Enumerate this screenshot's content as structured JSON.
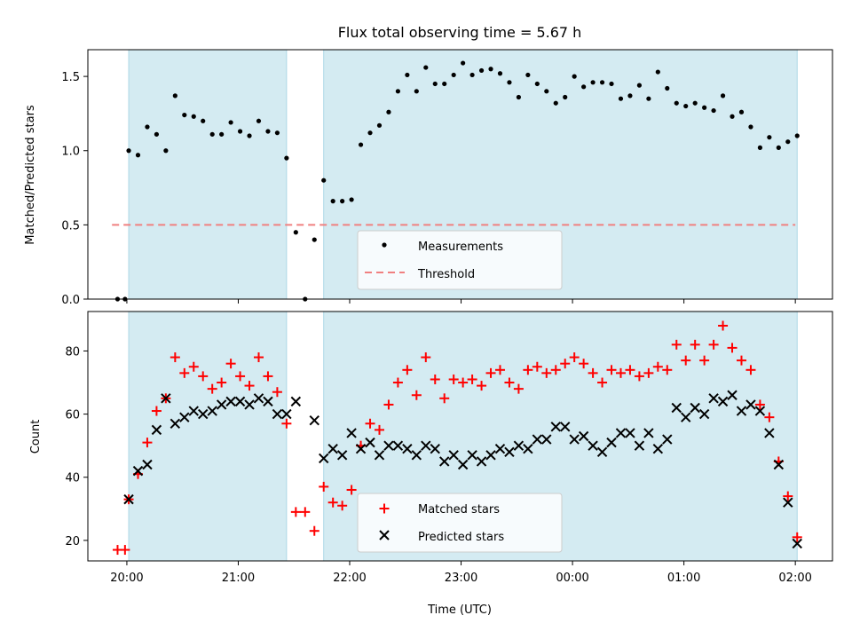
{
  "chart_data": {
    "type": "scatter",
    "title": "Flux total observing time = 5.67 h",
    "xlabel": "Time (UTC)",
    "x_ticks": [
      "20:00",
      "21:00",
      "22:00",
      "23:00",
      "00:00",
      "01:00",
      "02:00"
    ],
    "x_range": [
      "19:39",
      "02:20"
    ],
    "shaded_intervals": [
      [
        "20:01",
        "21:26"
      ],
      [
        "21:46",
        "02:01"
      ]
    ],
    "shade_color": "#add8e6",
    "top": {
      "ylabel": "Matched/Predicted stars",
      "ylim": [
        0,
        1.68
      ],
      "y_ticks": [
        0.0,
        0.5,
        1.0,
        1.5
      ],
      "y_tick_labels": [
        "0.0",
        "0.5",
        "1.0",
        "1.5"
      ],
      "legend_position": "bottom-center",
      "threshold": {
        "name": "Threshold",
        "value": 0.5,
        "x_range": [
          "19:52",
          "02:00"
        ],
        "color": "#f08080"
      },
      "series": [
        {
          "name": "Measurements",
          "color": "#000000",
          "points": [
            [
              "19:55",
              0.0
            ],
            [
              "19:59",
              0.0
            ],
            [
              "20:01",
              1.0
            ],
            [
              "20:06",
              0.97
            ],
            [
              "20:11",
              1.16
            ],
            [
              "20:16",
              1.11
            ],
            [
              "20:21",
              1.0
            ],
            [
              "20:26",
              1.37
            ],
            [
              "20:31",
              1.24
            ],
            [
              "20:36",
              1.23
            ],
            [
              "20:41",
              1.2
            ],
            [
              "20:46",
              1.11
            ],
            [
              "20:51",
              1.11
            ],
            [
              "20:56",
              1.19
            ],
            [
              "21:01",
              1.13
            ],
            [
              "21:06",
              1.1
            ],
            [
              "21:11",
              1.2
            ],
            [
              "21:16",
              1.13
            ],
            [
              "21:21",
              1.12
            ],
            [
              "21:26",
              0.95
            ],
            [
              "21:31",
              0.45
            ],
            [
              "21:36",
              0.0
            ],
            [
              "21:41",
              0.4
            ],
            [
              "21:46",
              0.8
            ],
            [
              "21:51",
              0.66
            ],
            [
              "21:56",
              0.66
            ],
            [
              "22:01",
              0.67
            ],
            [
              "22:06",
              1.04
            ],
            [
              "22:11",
              1.12
            ],
            [
              "22:16",
              1.17
            ],
            [
              "22:21",
              1.26
            ],
            [
              "22:26",
              1.4
            ],
            [
              "22:31",
              1.51
            ],
            [
              "22:36",
              1.4
            ],
            [
              "22:41",
              1.56
            ],
            [
              "22:46",
              1.45
            ],
            [
              "22:51",
              1.45
            ],
            [
              "22:56",
              1.51
            ],
            [
              "23:01",
              1.59
            ],
            [
              "23:06",
              1.51
            ],
            [
              "23:11",
              1.54
            ],
            [
              "23:16",
              1.55
            ],
            [
              "23:21",
              1.52
            ],
            [
              "23:26",
              1.46
            ],
            [
              "23:31",
              1.36
            ],
            [
              "23:36",
              1.51
            ],
            [
              "23:41",
              1.45
            ],
            [
              "23:46",
              1.4
            ],
            [
              "23:51",
              1.32
            ],
            [
              "23:56",
              1.36
            ],
            [
              "00:01",
              1.5
            ],
            [
              "00:06",
              1.43
            ],
            [
              "00:11",
              1.46
            ],
            [
              "00:16",
              1.46
            ],
            [
              "00:21",
              1.45
            ],
            [
              "00:26",
              1.35
            ],
            [
              "00:31",
              1.37
            ],
            [
              "00:36",
              1.44
            ],
            [
              "00:41",
              1.35
            ],
            [
              "00:46",
              1.53
            ],
            [
              "00:51",
              1.42
            ],
            [
              "00:56",
              1.32
            ],
            [
              "01:01",
              1.3
            ],
            [
              "01:06",
              1.32
            ],
            [
              "01:11",
              1.29
            ],
            [
              "01:16",
              1.27
            ],
            [
              "01:21",
              1.37
            ],
            [
              "01:26",
              1.23
            ],
            [
              "01:31",
              1.26
            ],
            [
              "01:36",
              1.16
            ],
            [
              "01:41",
              1.02
            ],
            [
              "01:46",
              1.09
            ],
            [
              "01:51",
              1.02
            ],
            [
              "01:56",
              1.06
            ],
            [
              "02:01",
              1.1
            ]
          ]
        }
      ]
    },
    "bottom": {
      "ylabel": "Count",
      "ylim": [
        13.5,
        92.5
      ],
      "y_ticks": [
        20,
        40,
        60,
        80
      ],
      "legend_position": "bottom-center",
      "series": [
        {
          "name": "Matched stars",
          "color": "#ff0000",
          "marker": "+",
          "points": [
            [
              "19:55",
              17
            ],
            [
              "19:59",
              17
            ],
            [
              "20:01",
              33
            ],
            [
              "20:06",
              41
            ],
            [
              "20:11",
              51
            ],
            [
              "20:16",
              61
            ],
            [
              "20:21",
              65
            ],
            [
              "20:26",
              78
            ],
            [
              "20:31",
              73
            ],
            [
              "20:36",
              75
            ],
            [
              "20:41",
              72
            ],
            [
              "20:46",
              68
            ],
            [
              "20:51",
              70
            ],
            [
              "20:56",
              76
            ],
            [
              "21:01",
              72
            ],
            [
              "21:06",
              69
            ],
            [
              "21:11",
              78
            ],
            [
              "21:16",
              72
            ],
            [
              "21:21",
              67
            ],
            [
              "21:26",
              57
            ],
            [
              "21:31",
              29
            ],
            [
              "21:36",
              29
            ],
            [
              "21:41",
              23
            ],
            [
              "21:46",
              37
            ],
            [
              "21:51",
              32
            ],
            [
              "21:56",
              31
            ],
            [
              "22:01",
              36
            ],
            [
              "22:06",
              50
            ],
            [
              "22:11",
              57
            ],
            [
              "22:16",
              55
            ],
            [
              "22:21",
              63
            ],
            [
              "22:26",
              70
            ],
            [
              "22:31",
              74
            ],
            [
              "22:36",
              66
            ],
            [
              "22:41",
              78
            ],
            [
              "22:46",
              71
            ],
            [
              "22:51",
              65
            ],
            [
              "22:56",
              71
            ],
            [
              "23:01",
              70
            ],
            [
              "23:06",
              71
            ],
            [
              "23:11",
              69
            ],
            [
              "23:16",
              73
            ],
            [
              "23:21",
              74
            ],
            [
              "23:26",
              70
            ],
            [
              "23:31",
              68
            ],
            [
              "23:36",
              74
            ],
            [
              "23:41",
              75
            ],
            [
              "23:46",
              73
            ],
            [
              "23:51",
              74
            ],
            [
              "23:56",
              76
            ],
            [
              "00:01",
              78
            ],
            [
              "00:06",
              76
            ],
            [
              "00:11",
              73
            ],
            [
              "00:16",
              70
            ],
            [
              "00:21",
              74
            ],
            [
              "00:26",
              73
            ],
            [
              "00:31",
              74
            ],
            [
              "00:36",
              72
            ],
            [
              "00:41",
              73
            ],
            [
              "00:46",
              75
            ],
            [
              "00:51",
              74
            ],
            [
              "00:56",
              82
            ],
            [
              "01:01",
              77
            ],
            [
              "01:06",
              82
            ],
            [
              "01:11",
              77
            ],
            [
              "01:16",
              82
            ],
            [
              "01:21",
              88
            ],
            [
              "01:26",
              81
            ],
            [
              "01:31",
              77
            ],
            [
              "01:36",
              74
            ],
            [
              "01:41",
              63
            ],
            [
              "01:46",
              59
            ],
            [
              "01:51",
              45
            ],
            [
              "01:56",
              34
            ],
            [
              "02:01",
              21
            ]
          ]
        },
        {
          "name": "Predicted stars",
          "color": "#000000",
          "marker": "x",
          "points": [
            [
              "20:01",
              33
            ],
            [
              "20:06",
              42
            ],
            [
              "20:11",
              44
            ],
            [
              "20:16",
              55
            ],
            [
              "20:21",
              65
            ],
            [
              "20:26",
              57
            ],
            [
              "20:31",
              59
            ],
            [
              "20:36",
              61
            ],
            [
              "20:41",
              60
            ],
            [
              "20:46",
              61
            ],
            [
              "20:51",
              63
            ],
            [
              "20:56",
              64
            ],
            [
              "21:01",
              64
            ],
            [
              "21:06",
              63
            ],
            [
              "21:11",
              65
            ],
            [
              "21:16",
              64
            ],
            [
              "21:21",
              60
            ],
            [
              "21:26",
              60
            ],
            [
              "21:31",
              64
            ],
            [
              "21:41",
              58
            ],
            [
              "21:46",
              46
            ],
            [
              "21:51",
              49
            ],
            [
              "21:56",
              47
            ],
            [
              "22:01",
              54
            ],
            [
              "22:06",
              49
            ],
            [
              "22:11",
              51
            ],
            [
              "22:16",
              47
            ],
            [
              "22:21",
              50
            ],
            [
              "22:26",
              50
            ],
            [
              "22:31",
              49
            ],
            [
              "22:36",
              47
            ],
            [
              "22:41",
              50
            ],
            [
              "22:46",
              49
            ],
            [
              "22:51",
              45
            ],
            [
              "22:56",
              47
            ],
            [
              "23:01",
              44
            ],
            [
              "23:06",
              47
            ],
            [
              "23:11",
              45
            ],
            [
              "23:16",
              47
            ],
            [
              "23:21",
              49
            ],
            [
              "23:26",
              48
            ],
            [
              "23:31",
              50
            ],
            [
              "23:36",
              49
            ],
            [
              "23:41",
              52
            ],
            [
              "23:46",
              52
            ],
            [
              "23:51",
              56
            ],
            [
              "23:56",
              56
            ],
            [
              "00:01",
              52
            ],
            [
              "00:06",
              53
            ],
            [
              "00:11",
              50
            ],
            [
              "00:16",
              48
            ],
            [
              "00:21",
              51
            ],
            [
              "00:26",
              54
            ],
            [
              "00:31",
              54
            ],
            [
              "00:36",
              50
            ],
            [
              "00:41",
              54
            ],
            [
              "00:46",
              49
            ],
            [
              "00:51",
              52
            ],
            [
              "00:56",
              62
            ],
            [
              "01:01",
              59
            ],
            [
              "01:06",
              62
            ],
            [
              "01:11",
              60
            ],
            [
              "01:16",
              65
            ],
            [
              "01:21",
              64
            ],
            [
              "01:26",
              66
            ],
            [
              "01:31",
              61
            ],
            [
              "01:36",
              63
            ],
            [
              "01:41",
              61
            ],
            [
              "01:46",
              54
            ],
            [
              "01:51",
              44
            ],
            [
              "01:56",
              32
            ],
            [
              "02:01",
              19
            ]
          ]
        }
      ]
    }
  }
}
